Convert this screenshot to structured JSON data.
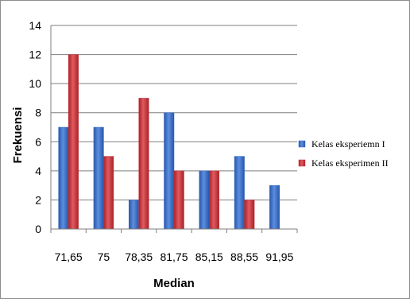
{
  "chart_data": {
    "type": "bar",
    "xlabel": "Median",
    "ylabel": "Frekuensi",
    "categories": [
      "71,65",
      "75",
      "78,35",
      "81,75",
      "85,15",
      "88,55",
      "91,95"
    ],
    "ylim": [
      0,
      14
    ],
    "yticks": [
      0,
      2,
      4,
      6,
      8,
      10,
      12,
      14
    ],
    "grid": true,
    "legend_position": "right",
    "series": [
      {
        "name": "Kelas eksperiemn I",
        "color": "#3a6cc6",
        "values": [
          7,
          7,
          2,
          8,
          4,
          5,
          3
        ]
      },
      {
        "name": "Kelas eksperimen II",
        "color": "#c8353b",
        "values": [
          12,
          5,
          9,
          4,
          4,
          2,
          0
        ]
      }
    ]
  }
}
